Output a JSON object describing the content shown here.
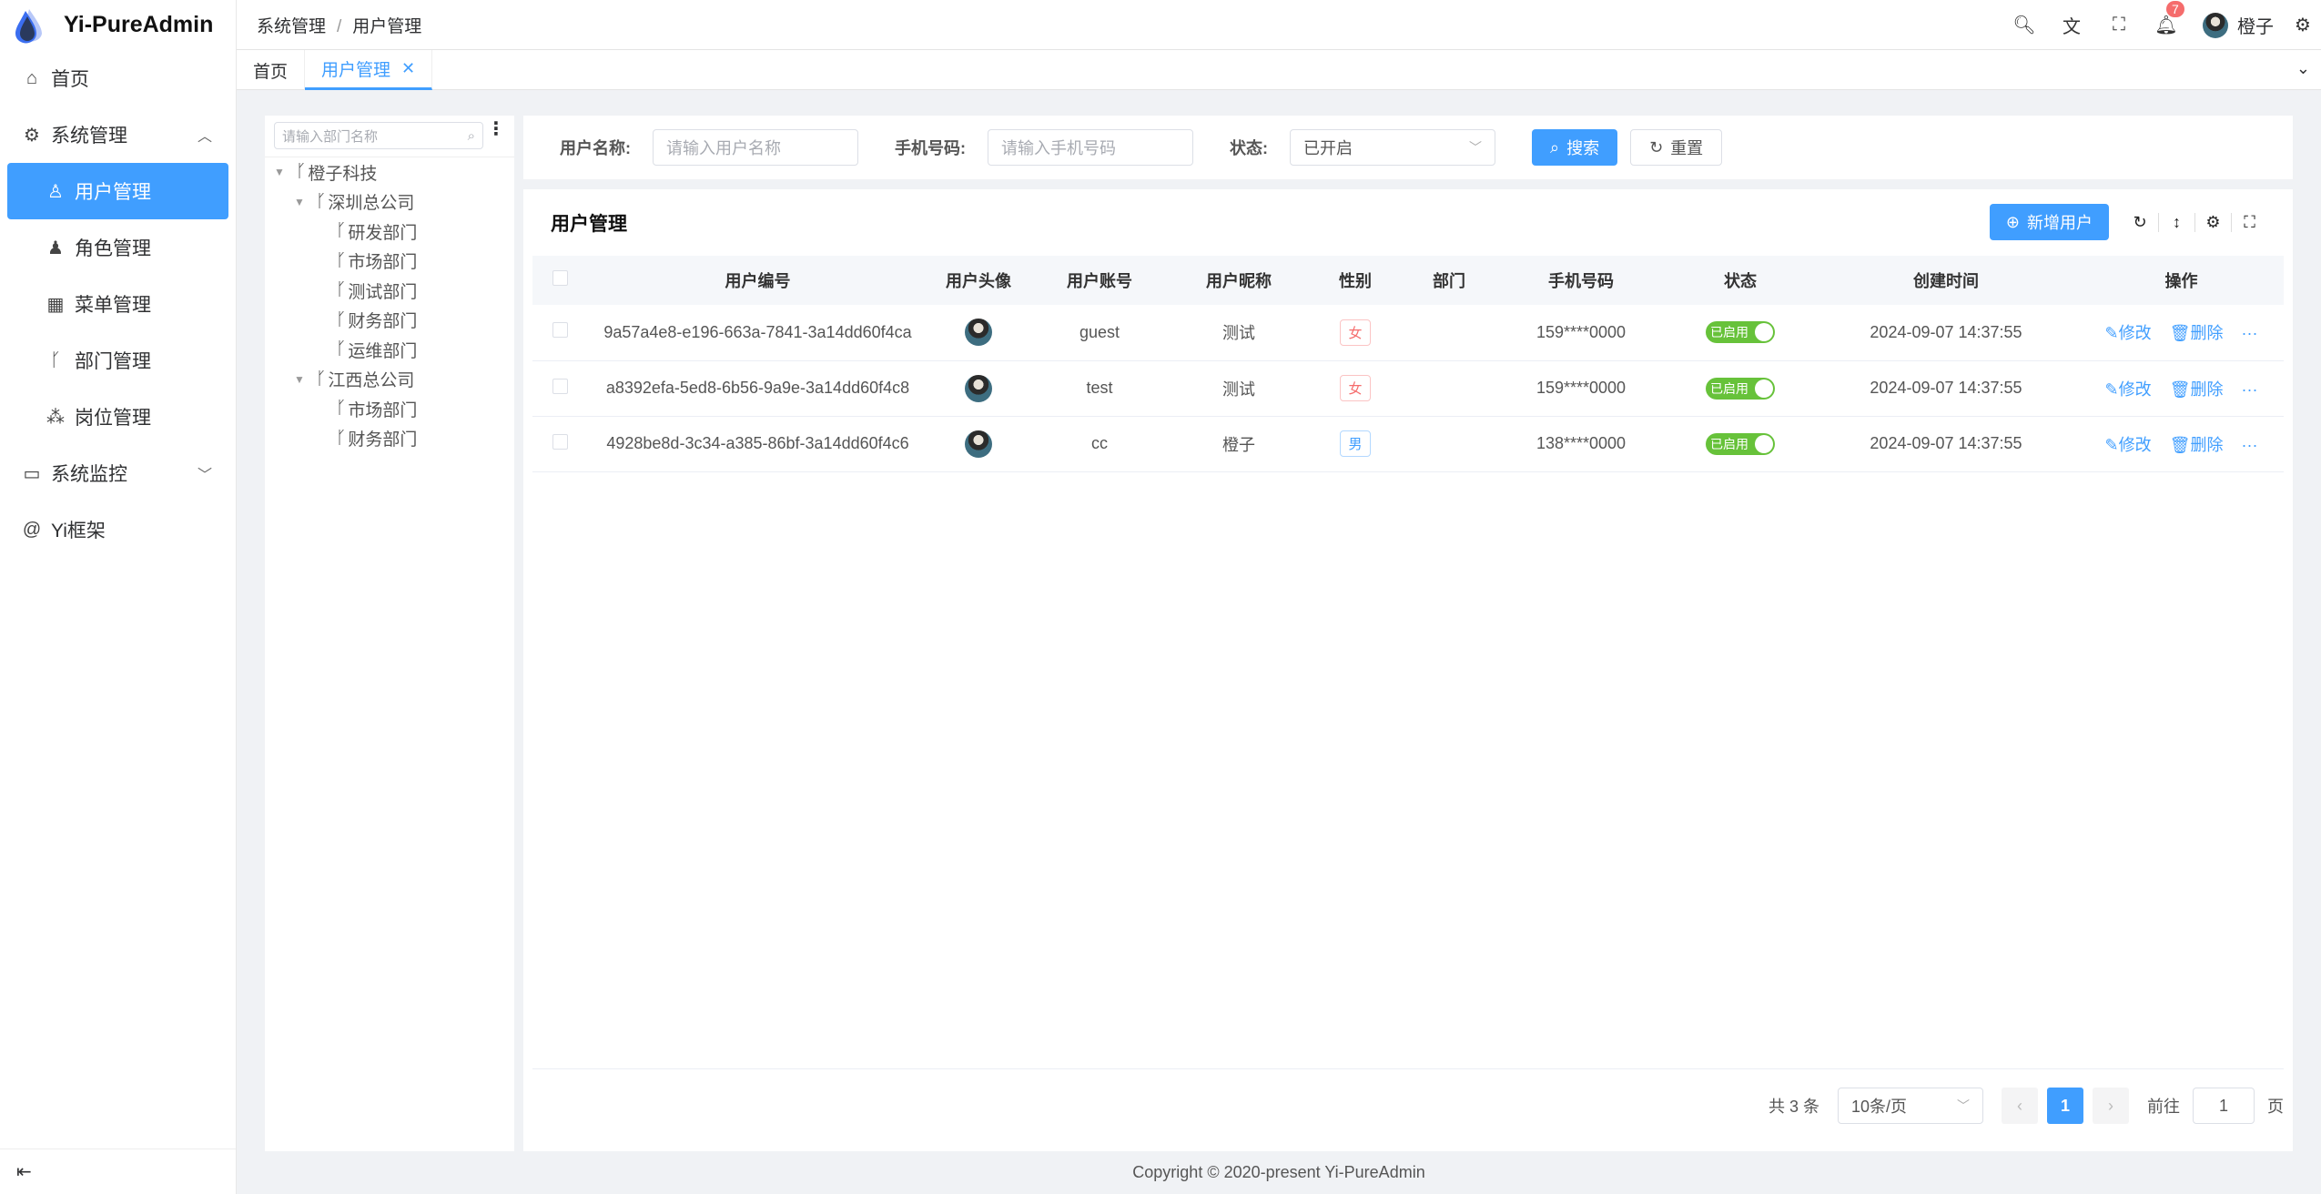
{
  "app": {
    "title": "Yi-PureAdmin"
  },
  "sidebar": {
    "items": [
      {
        "label": "首页",
        "icon": "home-icon"
      },
      {
        "label": "系统管理",
        "icon": "gear-icon",
        "expanded": true,
        "children": [
          {
            "label": "用户管理",
            "icon": "user-lock-icon",
            "active": true
          },
          {
            "label": "角色管理",
            "icon": "role-icon"
          },
          {
            "label": "菜单管理",
            "icon": "grid-icon"
          },
          {
            "label": "部门管理",
            "icon": "branch-icon"
          },
          {
            "label": "岗位管理",
            "icon": "hierarchy-icon"
          }
        ]
      },
      {
        "label": "系统监控",
        "icon": "monitor-icon",
        "expanded": false
      },
      {
        "label": "Yi框架",
        "icon": "at-icon"
      }
    ]
  },
  "header": {
    "breadcrumb": [
      "系统管理",
      "用户管理"
    ],
    "notification_count": "7",
    "username": "橙子"
  },
  "tabs": [
    {
      "label": "首页"
    },
    {
      "label": "用户管理",
      "active": true
    }
  ],
  "tree": {
    "search_placeholder": "请输入部门名称",
    "nodes": [
      {
        "label": "橙子科技",
        "level": 0
      },
      {
        "label": "深圳总公司",
        "level": 1
      },
      {
        "label": "研发部门",
        "level": 2
      },
      {
        "label": "市场部门",
        "level": 2
      },
      {
        "label": "测试部门",
        "level": 2
      },
      {
        "label": "财务部门",
        "level": 2
      },
      {
        "label": "运维部门",
        "level": 2
      },
      {
        "label": "江西总公司",
        "level": 1
      },
      {
        "label": "市场部门",
        "level": 2
      },
      {
        "label": "财务部门",
        "level": 2
      }
    ]
  },
  "filter": {
    "name_label": "用户名称:",
    "name_placeholder": "请输入用户名称",
    "phone_label": "手机号码:",
    "phone_placeholder": "请输入手机号码",
    "status_label": "状态:",
    "status_value": "已开启",
    "search": "搜索",
    "reset": "重置"
  },
  "card": {
    "title": "用户管理",
    "add": "新增用户"
  },
  "table": {
    "columns": [
      "用户编号",
      "用户头像",
      "用户账号",
      "用户昵称",
      "性别",
      "部门",
      "手机号码",
      "状态",
      "创建时间",
      "操作"
    ],
    "rows": [
      {
        "id": "9a57a4e8-e196-663a-7841-3a14dd60f4ca",
        "account": "guest",
        "nickname": "测试",
        "gender": "女",
        "dept": "",
        "phone": "159****0000",
        "status": "已启用",
        "created": "2024-09-07 14:37:55"
      },
      {
        "id": "a8392efa-5ed8-6b56-9a9e-3a14dd60f4c8",
        "account": "test",
        "nickname": "测试",
        "gender": "女",
        "dept": "",
        "phone": "159****0000",
        "status": "已启用",
        "created": "2024-09-07 14:37:55"
      },
      {
        "id": "4928be8d-3c34-a385-86bf-3a14dd60f4c6",
        "account": "cc",
        "nickname": "橙子",
        "gender": "男",
        "dept": "",
        "phone": "138****0000",
        "status": "已启用",
        "created": "2024-09-07 14:37:55"
      }
    ],
    "edit": "修改",
    "delete": "删除"
  },
  "pagination": {
    "total": "共 3 条",
    "page_size": "10条/页",
    "current": "1",
    "goto": "前往",
    "goto_value": "1",
    "page_suffix": "页"
  },
  "footer": {
    "copyright": "Copyright © 2020-present Yi-PureAdmin"
  },
  "colors": {
    "primary": "#409eff",
    "success": "#67c23a",
    "danger": "#f56c6c"
  }
}
